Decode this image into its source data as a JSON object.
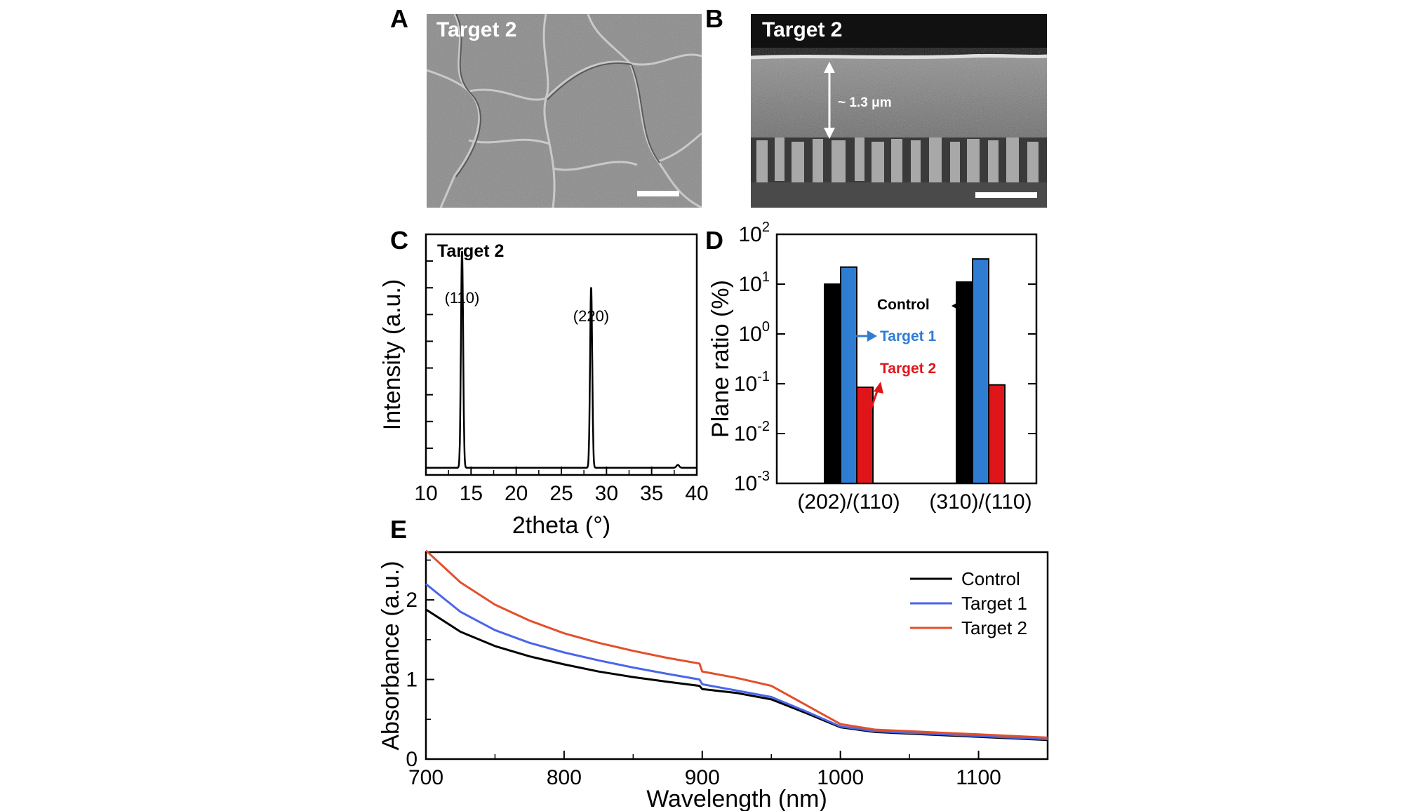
{
  "panels": {
    "A": {
      "letter": "A",
      "label": "Target 2"
    },
    "B": {
      "letter": "B",
      "label": "Target 2",
      "thickness": "~ 1.3 μm"
    },
    "C": {
      "letter": "C"
    },
    "D": {
      "letter": "D"
    },
    "E": {
      "letter": "E"
    }
  },
  "colors": {
    "control": "#000000",
    "target1_bar": "#2f7dd3",
    "target2_bar": "#e0151a",
    "target1_line": "#4a66e8",
    "target2_line": "#e2502a"
  },
  "chart_data": [
    {
      "id": "C",
      "type": "line",
      "inset_title": "Target 2",
      "xlabel": "2theta (°)",
      "ylabel": "Intensity (a.u.)",
      "xlim": [
        10,
        40
      ],
      "xticks": [
        10,
        15,
        20,
        25,
        30,
        35,
        40
      ],
      "y_tick_labels": false,
      "annotations": [
        {
          "text": "(110)",
          "x": 14.0
        },
        {
          "text": "(220)",
          "x": 28.3
        }
      ],
      "series": [
        {
          "peaks": [
            {
              "center": 14.0,
              "height": 0.9,
              "width": 0.12
            },
            {
              "center": 28.3,
              "height": 0.75,
              "width": 0.12
            },
            {
              "center": 37.9,
              "height": 0.012,
              "width": 0.15
            }
          ],
          "baseline": 0.03
        }
      ]
    },
    {
      "id": "D",
      "type": "bar",
      "ylabel": "Plane ratio (%)",
      "yscale": "log",
      "ylim_exponents": [
        -3,
        2
      ],
      "categories": [
        "(202)/(110)",
        "(310)/(110)"
      ],
      "series": [
        {
          "name": "Control",
          "values": [
            10,
            11
          ]
        },
        {
          "name": "Target 1",
          "values": [
            22,
            32
          ]
        },
        {
          "name": "Target 2",
          "values": [
            0.085,
            0.095
          ]
        }
      ]
    },
    {
      "id": "E",
      "type": "line",
      "xlabel": "Wavelength (nm)",
      "ylabel": "Absorbance (a.u.)",
      "xlim": [
        700,
        1150
      ],
      "ylim": [
        0,
        2.6
      ],
      "xticks": [
        700,
        800,
        900,
        1000,
        1100
      ],
      "yticks": [
        0,
        1,
        2
      ],
      "legend_position": "top-right",
      "series": [
        {
          "name": "Control",
          "x": [
            700,
            725,
            750,
            775,
            800,
            825,
            850,
            875,
            898,
            900,
            925,
            950,
            975,
            1000,
            1025,
            1050,
            1075,
            1100,
            1125,
            1150
          ],
          "y": [
            1.88,
            1.6,
            1.42,
            1.29,
            1.19,
            1.1,
            1.03,
            0.97,
            0.92,
            0.88,
            0.83,
            0.75,
            0.58,
            0.4,
            0.34,
            0.32,
            0.3,
            0.28,
            0.26,
            0.24
          ]
        },
        {
          "name": "Target 1",
          "x": [
            700,
            725,
            750,
            775,
            800,
            825,
            850,
            875,
            898,
            900,
            925,
            950,
            975,
            1000,
            1025,
            1050,
            1075,
            1100,
            1125,
            1150
          ],
          "y": [
            2.2,
            1.85,
            1.62,
            1.46,
            1.34,
            1.24,
            1.15,
            1.07,
            1.0,
            0.94,
            0.86,
            0.78,
            0.6,
            0.41,
            0.35,
            0.33,
            0.31,
            0.29,
            0.27,
            0.25
          ]
        },
        {
          "name": "Target 2",
          "x": [
            700,
            725,
            750,
            775,
            800,
            825,
            850,
            875,
            898,
            900,
            925,
            950,
            975,
            1000,
            1025,
            1050,
            1075,
            1100,
            1125,
            1150
          ],
          "y": [
            2.62,
            2.22,
            1.94,
            1.74,
            1.58,
            1.46,
            1.36,
            1.27,
            1.2,
            1.1,
            1.02,
            0.92,
            0.68,
            0.44,
            0.37,
            0.35,
            0.33,
            0.31,
            0.29,
            0.27
          ]
        }
      ]
    }
  ]
}
